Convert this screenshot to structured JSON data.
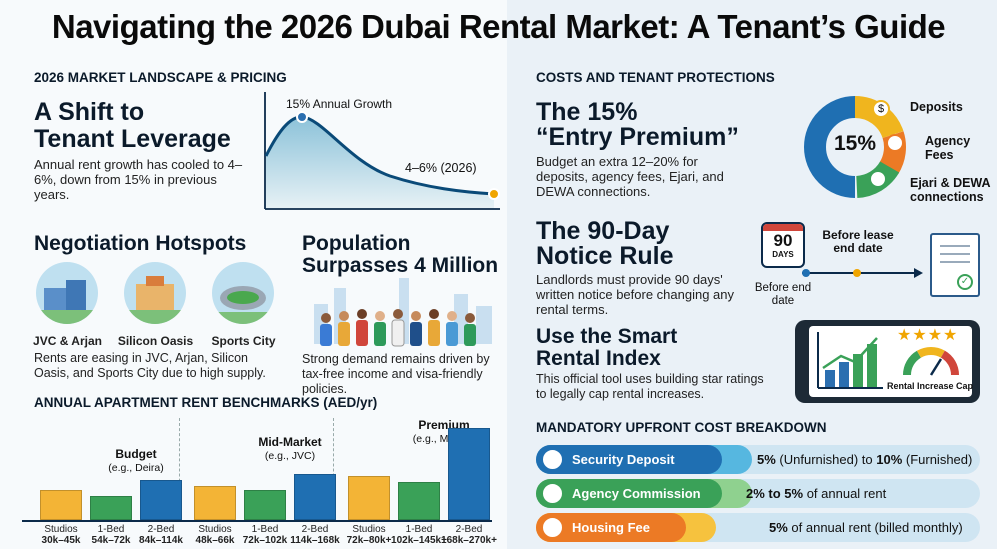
{
  "title": "Navigating the 2026 Dubai Rental Market: A Tenant’s Guide",
  "left": {
    "section1": "2026 MARKET LANDSCAPE & PRICING",
    "shift": {
      "heading1": "A Shift to",
      "heading2": "Tenant Leverage",
      "body": "Annual rent growth has cooled to 4–6%, down from 15% in previous years."
    },
    "growth_chart": {
      "peak_label": "15% Annual Growth",
      "end_label": "4–6% (2026)"
    },
    "hotspots": {
      "heading": "Negotiation Hotspots",
      "areas": [
        "JVC & Arjan",
        "Silicon Oasis",
        "Sports City"
      ],
      "body": "Rents are easing in JVC, Arjan, Silicon Oasis, and Sports City due to high supply."
    },
    "population": {
      "heading1": "Population",
      "heading2": "Surpasses 4 Million",
      "body": "Strong demand remains driven by tax-free income and visa-friendly policies."
    },
    "section2": "ANNUAL APARTMENT RENT BENCHMARKS (AED/yr)",
    "benchmarks": [
      {
        "name": "Budget",
        "sub": "(e.g., Deira)",
        "units": [
          {
            "label": "Studios",
            "range": "30k–45k"
          },
          {
            "label": "1-Bed",
            "range": "54k–72k"
          },
          {
            "label": "2-Bed",
            "range": "84k–114k"
          }
        ]
      },
      {
        "name": "Mid-Market",
        "sub": "(e.g., JVC)",
        "units": [
          {
            "label": "Studios",
            "range": "48k–66k"
          },
          {
            "label": "1-Bed",
            "range": "72k–102k"
          },
          {
            "label": "2-Bed",
            "range": "114k–168k"
          }
        ]
      },
      {
        "name": "Premium",
        "sub": "(e.g., Marina)",
        "units": [
          {
            "label": "Studios",
            "range": "72k–80k+"
          },
          {
            "label": "1-Bed",
            "range": "102k–145k+"
          },
          {
            "label": "2-Bed",
            "range": "168k–270k+"
          }
        ]
      }
    ]
  },
  "right": {
    "section1": "COSTS AND TENANT PROTECTIONS",
    "entry": {
      "heading1": "The 15%",
      "heading2": "“Entry Premium”",
      "body": "Budget an extra 12–20% for deposits, agency fees, Ejari, and DEWA connections.",
      "donut_center": "15%",
      "legend": [
        "Deposits",
        "Agency Fees",
        "Ejari & DEWA connections"
      ]
    },
    "notice": {
      "heading1": "The 90-Day",
      "heading2": "Notice Rule",
      "body": "Landlords must provide 90 days' written notice before changing any rental terms.",
      "calendar_num": "90",
      "calendar_unit": "DAYS",
      "before_lease_end": "Before lease end date",
      "before_end": "Before end date"
    },
    "index": {
      "heading1": "Use the Smart",
      "heading2": "Rental Index",
      "body": "This official tool uses building star ratings to legally cap rental increases.",
      "gauge_label": "Rental Increase Cap",
      "stars": "★★★★"
    },
    "section2": "MANDATORY UPFRONT COST BREAKDOWN",
    "costs": [
      {
        "label": "Security Deposit",
        "value_a": "5%",
        "value_mid": " (Unfurnished) to ",
        "value_b": "10%",
        "value_c": " (Furnished)"
      },
      {
        "label": "Agency Commission",
        "value_a": "2% to 5%",
        "value_mid": " of annual rent",
        "value_b": "",
        "value_c": ""
      },
      {
        "label": "Housing Fee",
        "value_a": "5%",
        "value_mid": " of annual rent (billed monthly)",
        "value_b": "",
        "value_c": ""
      }
    ]
  }
}
